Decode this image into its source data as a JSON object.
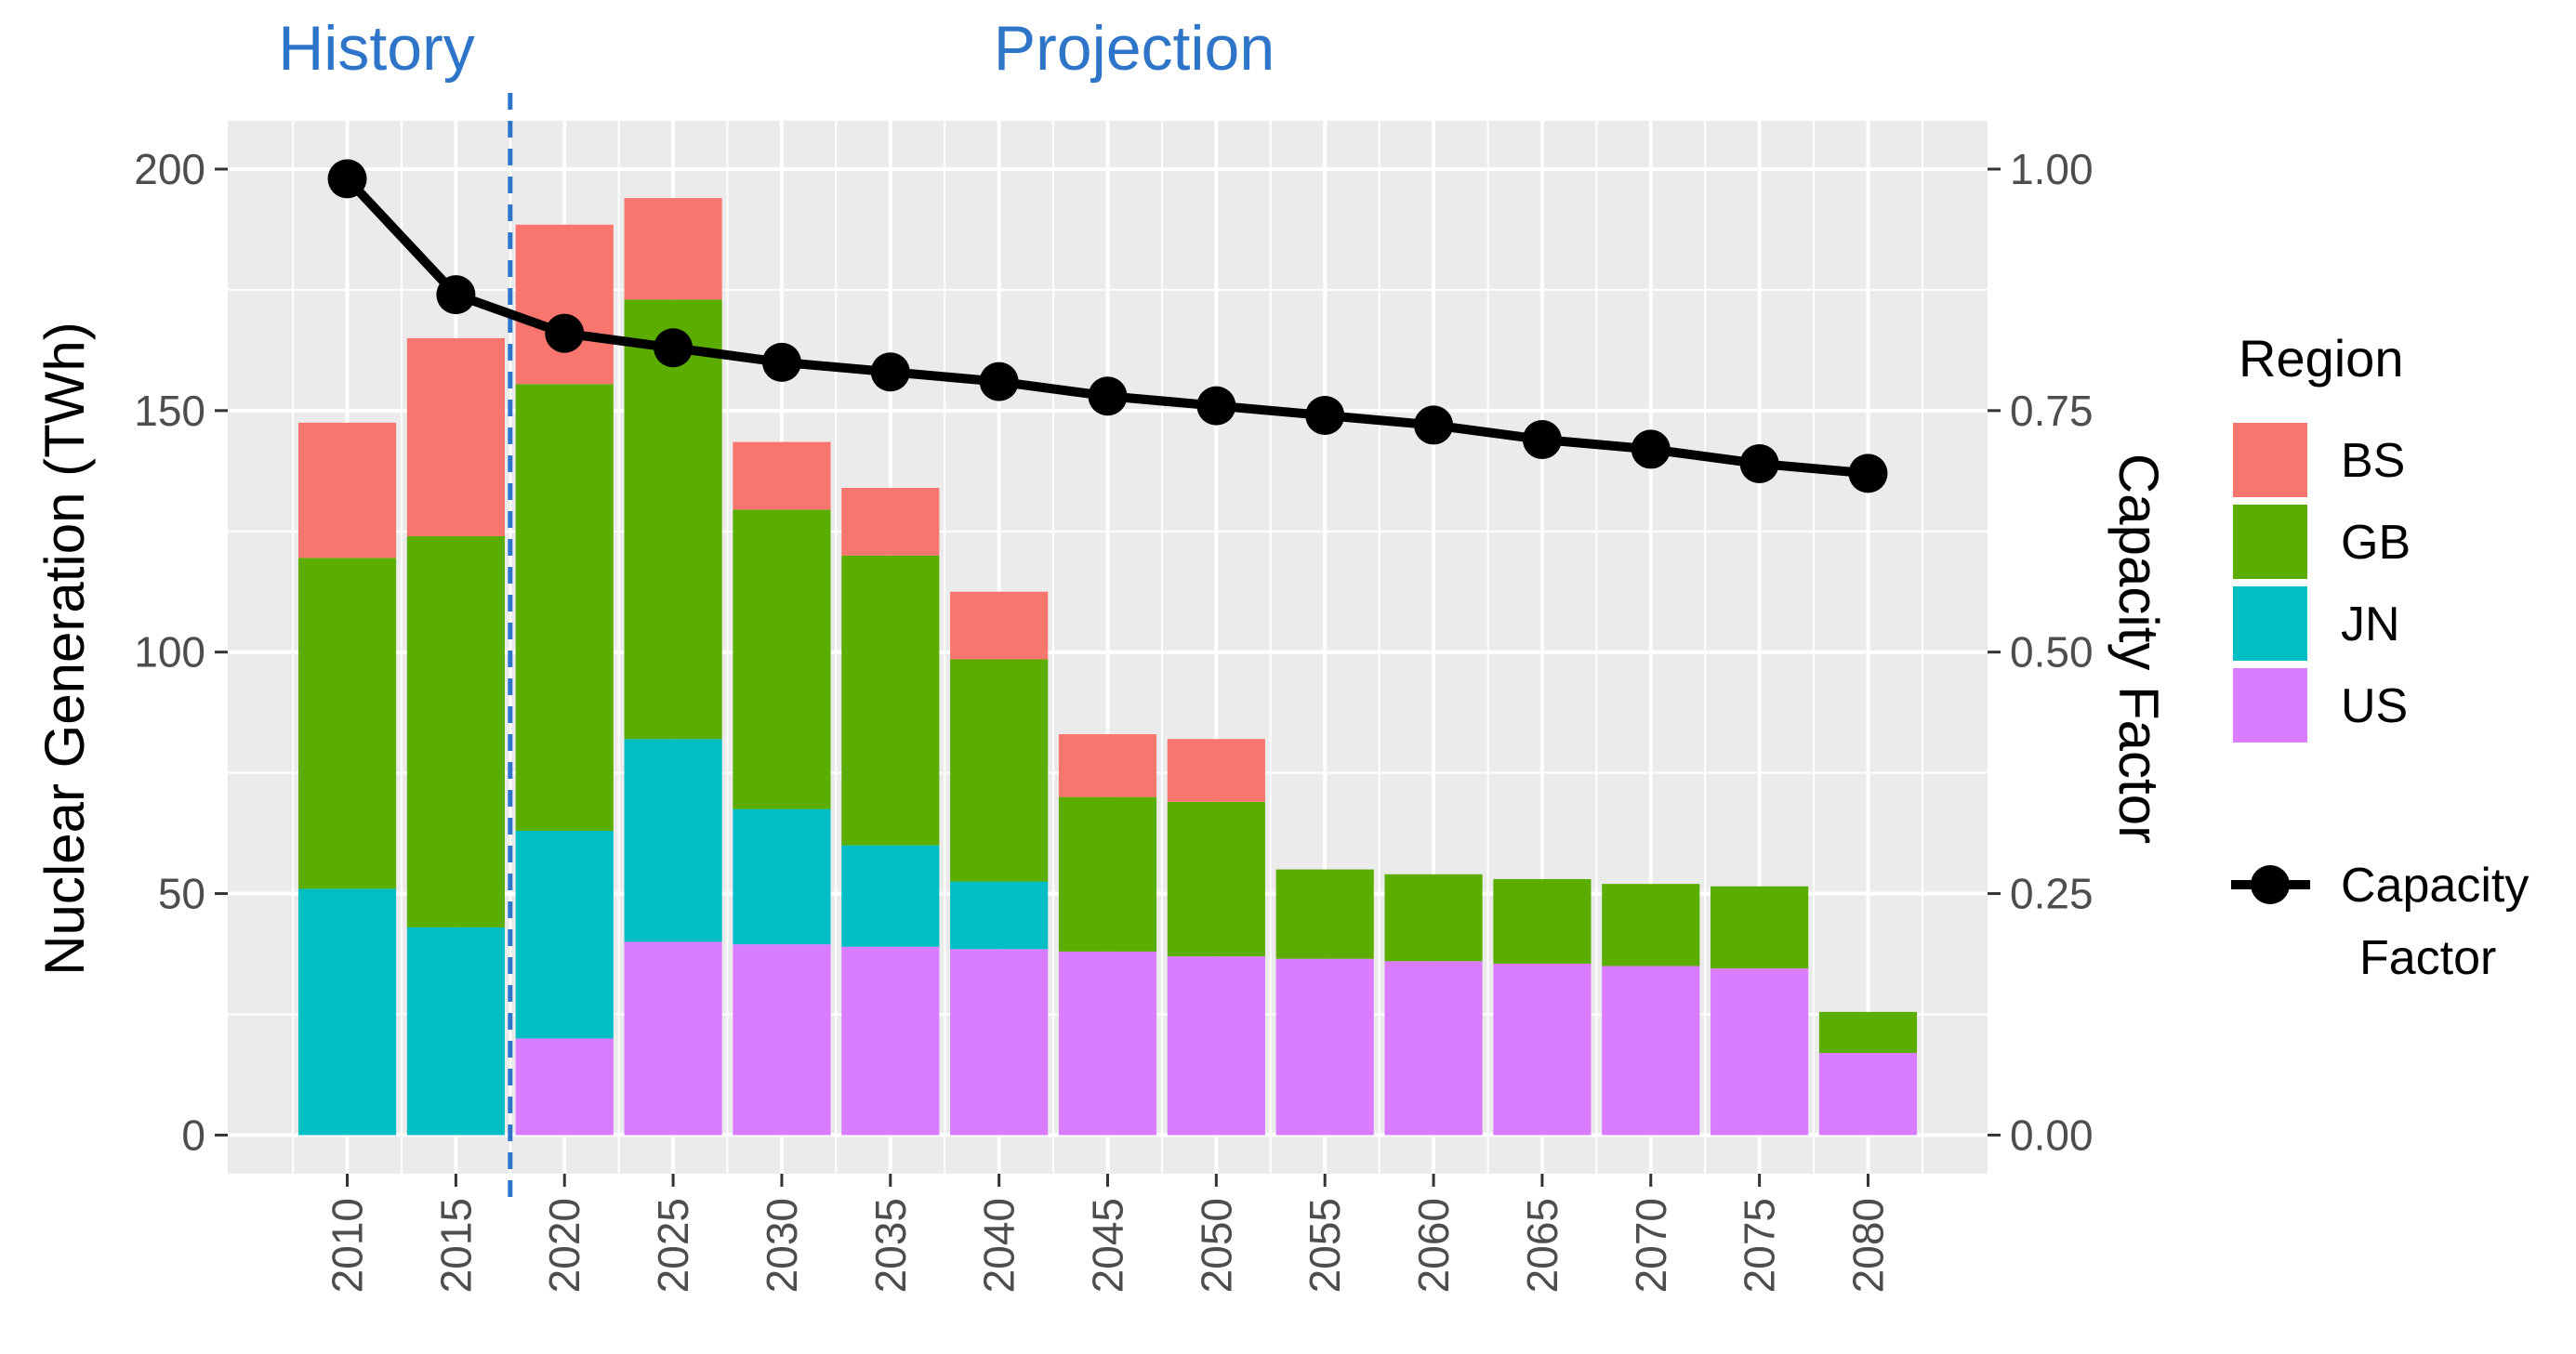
{
  "chart_data": {
    "type": "bar",
    "stacked": true,
    "categories": [
      "2010",
      "2015",
      "2020",
      "2025",
      "2030",
      "2035",
      "2040",
      "2045",
      "2050",
      "2055",
      "2060",
      "2065",
      "2070",
      "2075",
      "2080"
    ],
    "series": [
      {
        "name": "US",
        "color": "#D97CFF",
        "values": [
          0,
          0,
          20,
          40,
          39.5,
          39,
          38.5,
          38,
          37,
          36.5,
          36,
          35.5,
          35,
          34.5,
          17
        ]
      },
      {
        "name": "JN",
        "color": "#00BFC4",
        "values": [
          51,
          43,
          43,
          42,
          28,
          21,
          14,
          0,
          0,
          0,
          0,
          0,
          0,
          0,
          0
        ]
      },
      {
        "name": "GB",
        "color": "#5BAE00",
        "values": [
          68.5,
          81,
          92.5,
          91,
          62,
          60,
          46,
          32,
          32,
          18.5,
          18,
          17.5,
          17,
          17,
          8.5
        ]
      },
      {
        "name": "BS",
        "color": "#F8766D",
        "values": [
          28,
          41,
          33,
          21,
          14,
          14,
          14,
          13,
          13,
          0,
          0,
          0,
          0,
          0,
          0
        ]
      }
    ],
    "line": {
      "name": "Capacity Factor",
      "axis": "right",
      "color": "#000000",
      "values": [
        0.99,
        0.87,
        0.83,
        0.815,
        0.8,
        0.79,
        0.78,
        0.765,
        0.755,
        0.745,
        0.735,
        0.72,
        0.71,
        0.695,
        0.685
      ]
    },
    "ylabel": "Nuclear Generation (TWh)",
    "ylabel_right": "Capacity Factor",
    "xlabel": "",
    "ylim": [
      -8,
      210
    ],
    "ylim_right": [
      -0.04,
      1.05
    ],
    "yticks": [
      {
        "value": 0,
        "label": "0"
      },
      {
        "value": 50,
        "label": "50"
      },
      {
        "value": 100,
        "label": "100"
      },
      {
        "value": 150,
        "label": "150"
      },
      {
        "value": 200,
        "label": "200"
      }
    ],
    "yticks_right": [
      {
        "value": 0,
        "label": "0.00"
      },
      {
        "value": 0.25,
        "label": "0.25"
      },
      {
        "value": 0.5,
        "label": "0.50"
      },
      {
        "value": 0.75,
        "label": "0.75"
      },
      {
        "value": 1,
        "label": "1.00"
      }
    ],
    "divider_after_category": "2015",
    "divider_color": "#2e75c9",
    "annotations": {
      "history": "History",
      "projection": "Projection"
    },
    "legend": {
      "title": "Region",
      "position": "right",
      "order": [
        "BS",
        "GB",
        "JN",
        "US"
      ],
      "line_label_1": "Capacity",
      "line_label_2": "Factor"
    },
    "panel_color": "#EBEBEB",
    "grid": true
  }
}
